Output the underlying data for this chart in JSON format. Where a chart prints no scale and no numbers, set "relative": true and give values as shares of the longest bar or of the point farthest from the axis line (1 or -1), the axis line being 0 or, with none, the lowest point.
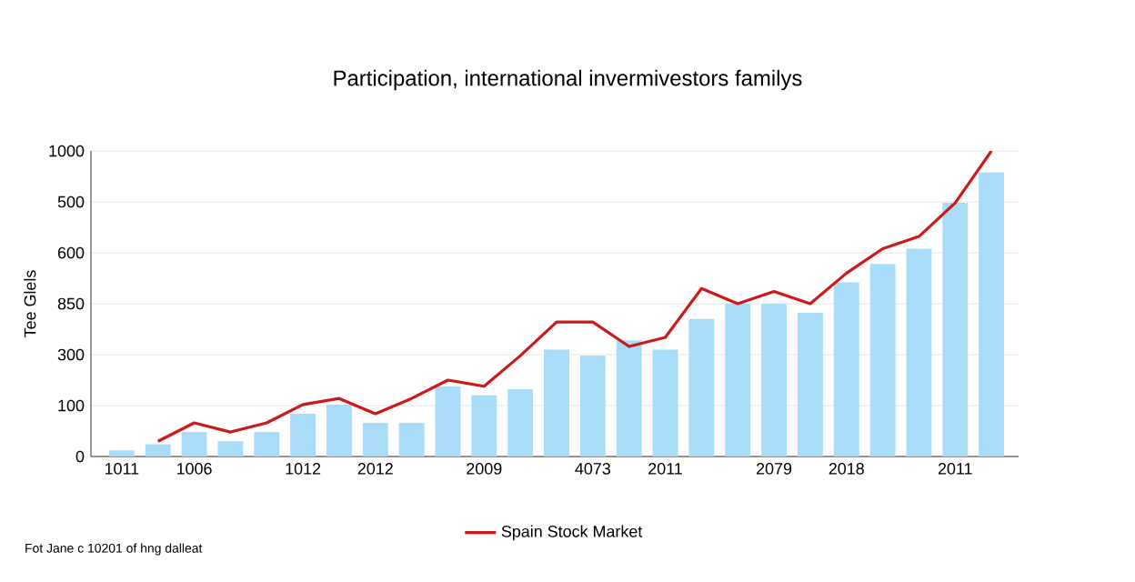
{
  "chart_data": {
    "type": "bar",
    "title": "Participation, international invermivestors familys",
    "ylabel": "Tee Glels",
    "relative": true,
    "categories": [
      "1011",
      null,
      "1006",
      null,
      null,
      "1012",
      null,
      "2012",
      null,
      null,
      "2009",
      null,
      null,
      "4073",
      null,
      "2011",
      null,
      null,
      "2079",
      null,
      "2018",
      null,
      null,
      "2011",
      null
    ],
    "series": [
      {
        "color": "#a9dcf8",
        "values": [
          0.02,
          0.04,
          0.08,
          0.05,
          0.08,
          0.14,
          0.17,
          0.11,
          0.11,
          0.23,
          0.2,
          0.22,
          0.35,
          0.33,
          0.38,
          0.35,
          0.45,
          0.5,
          0.5,
          0.47,
          0.57,
          0.63,
          0.68,
          0.83,
          0.93
        ]
      },
      {
        "type": "line",
        "name": "Spain Stock Market",
        "color": "#cc1a1a",
        "values": [
          null,
          0.05,
          0.11,
          0.08,
          0.11,
          0.17,
          0.19,
          0.14,
          0.19,
          0.25,
          0.23,
          0.33,
          0.44,
          0.44,
          0.36,
          0.39,
          0.55,
          0.5,
          0.54,
          0.5,
          0.6,
          0.68,
          0.72,
          0.83,
          1
        ]
      }
    ],
    "grid": "y",
    "legend": "bottom",
    "annotations": [
      "Fot Jane c 10201 of hng dalleat",
      "0",
      "100",
      "300",
      "850",
      "600",
      "500",
      "1000"
    ]
  }
}
